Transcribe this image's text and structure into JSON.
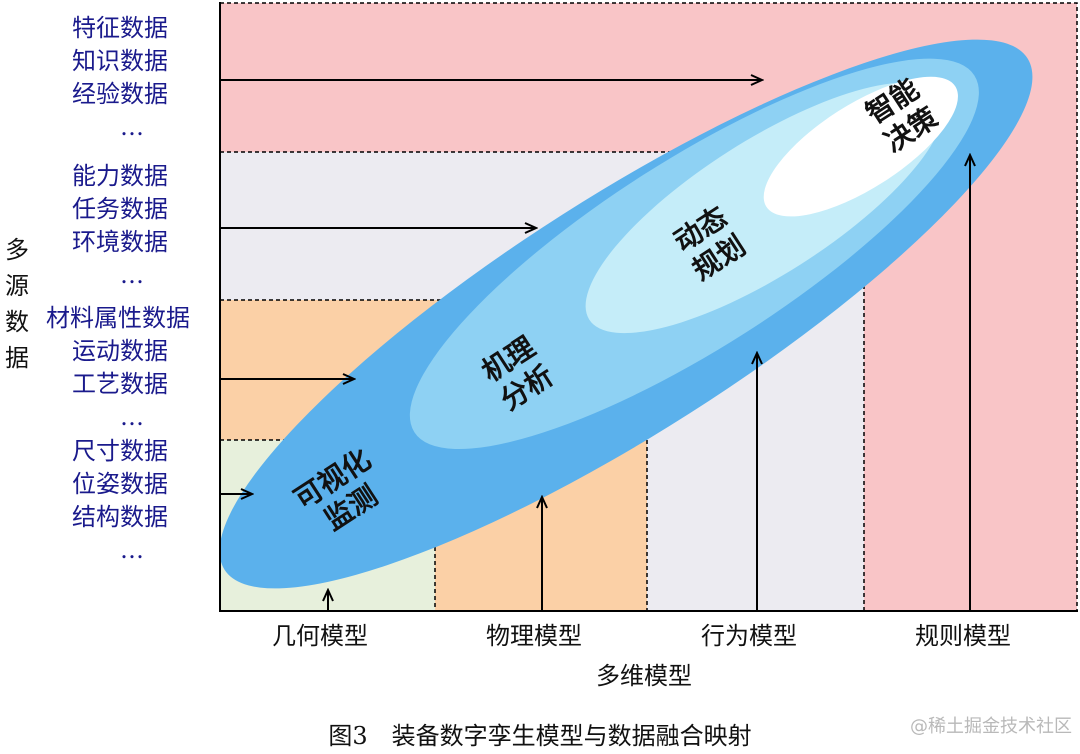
{
  "data_groups": [
    {
      "lines": [
        "特征数据",
        "知识数据",
        "经验数据",
        "…"
      ]
    },
    {
      "lines": [
        "能力数据",
        "任务数据",
        "环境数据",
        "…"
      ]
    },
    {
      "lines": [
        "材料属性数据",
        "运动数据",
        "工艺数据",
        "…"
      ]
    },
    {
      "lines": [
        "尺寸数据",
        "位姿数据",
        "结构数据",
        "…"
      ]
    }
  ],
  "y_axis_label": "多源数据",
  "x_categories": [
    "几何模型",
    "物理模型",
    "行为模型",
    "规则模型"
  ],
  "x_axis_label": "多维模型",
  "stages": [
    {
      "line1": "可视化",
      "line2": "监测"
    },
    {
      "line1": "机理",
      "line2": "分析"
    },
    {
      "line1": "动态",
      "line2": "规划"
    },
    {
      "line1": "智能",
      "line2": "决策"
    }
  ],
  "caption": "图3　装备数字孪生模型与数据融合映射",
  "watermark": "@稀土掘金技术社区",
  "colors": {
    "rule_region": "#f9c5c7",
    "behavior_region": "#ecebf1",
    "physics_region": "#fbd0a6",
    "geometry_region": "#e7f0dc",
    "ellipse_outer": "#5bb1ec",
    "ellipse_2": "#8ed1f3",
    "ellipse_3": "#c5edf9",
    "ellipse_core": "#ffffff",
    "data_text": "#1a1a8c"
  }
}
